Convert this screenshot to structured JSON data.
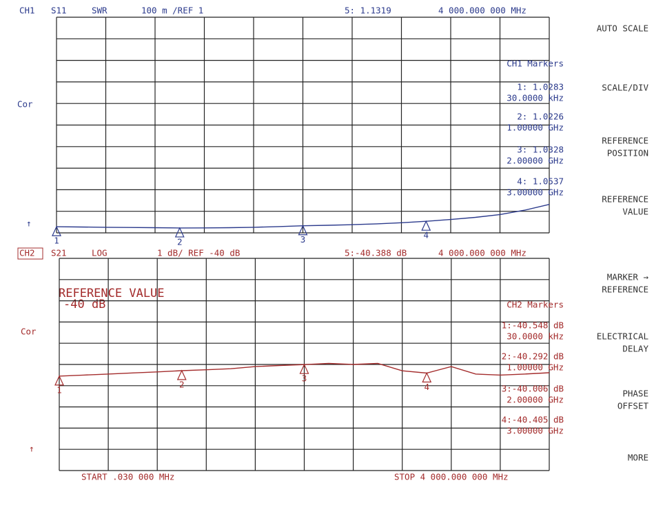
{
  "channels": [
    {
      "channel": "CH1",
      "param": "S11",
      "format": "SWR",
      "scale": "100 m /REF 1",
      "marker5": "5: 1.1319",
      "marker5_freq": "4 000.000 000 MHz",
      "cor": "Cor",
      "ref_arrow": "↑"
    },
    {
      "channel": "CH2",
      "param": "S21",
      "format": "LOG",
      "scale": "1 dB/ REF -40 dB",
      "marker5": "5:-40.388 dB",
      "marker5_freq": "4 000.000 000 MHz",
      "cor": "Cor",
      "ref_arrow": "↑"
    }
  ],
  "reference_note": {
    "line1": "REFERENCE VALUE",
    "line2": "-40 dB"
  },
  "footer": {
    "start": "START .030 000 MHz",
    "stop": "STOP 4 000.000 000 MHz"
  },
  "softkeys": [
    [
      "AUTO SCALE"
    ],
    [
      "SCALE/DIV"
    ],
    [
      "REFERENCE",
      "POSITION"
    ],
    [
      "REFERENCE",
      "VALUE"
    ],
    [
      "MARKER →",
      "REFERENCE"
    ],
    [
      "ELECTRICAL",
      "DELAY"
    ],
    [
      "PHASE",
      "OFFSET"
    ],
    [
      "MORE"
    ]
  ],
  "chart_data": [
    {
      "type": "line",
      "color": "#2b3a8c",
      "x": [
        0.03,
        200,
        400,
        600,
        800,
        1000,
        1200,
        1400,
        1600,
        1800,
        2000,
        2200,
        2400,
        2600,
        2800,
        3000,
        3200,
        3400,
        3600,
        3800,
        4000
      ],
      "values": [
        1.0283,
        1.027,
        1.026,
        1.025,
        1.024,
        1.0226,
        1.023,
        1.024,
        1.026,
        1.029,
        1.0328,
        1.035,
        1.038,
        1.042,
        1.047,
        1.0537,
        1.062,
        1.072,
        1.085,
        1.105,
        1.1319
      ],
      "xlim": [
        0.03,
        4000
      ],
      "ylim": [
        1,
        2
      ],
      "xticks": [
        0.03,
        400,
        800,
        1200,
        1600,
        2000,
        2400,
        2800,
        3200,
        3600,
        4000
      ],
      "yticks": [
        1,
        1.1,
        1.2,
        1.3,
        1.4,
        1.5,
        1.6,
        1.7,
        1.8,
        1.9,
        2
      ],
      "grid": true,
      "markers": {
        "title": "CH1 Markers",
        "labels": [
          "1",
          "2",
          "3",
          "4"
        ],
        "x": [
          0.03,
          1000,
          2000,
          3000
        ],
        "values": [
          1.0283,
          1.0226,
          1.0328,
          1.0537
        ],
        "value_labels": [
          "1: 1.0283",
          "2: 1.0226",
          "3: 1.0328",
          "4: 1.0537"
        ],
        "x_labels": [
          "30.0000 kHz",
          "1.00000 GHz",
          "2.00000 GHz",
          "3.00000 GHz"
        ]
      }
    },
    {
      "type": "line",
      "color": "#a32b2b",
      "x": [
        0.03,
        200,
        400,
        600,
        800,
        1000,
        1200,
        1400,
        1600,
        1800,
        2000,
        2200,
        2400,
        2600,
        2800,
        3000,
        3200,
        3400,
        3600,
        3800,
        4000
      ],
      "values": [
        -40.548,
        -40.5,
        -40.45,
        -40.4,
        -40.35,
        -40.292,
        -40.25,
        -40.2,
        -40.1,
        -40.05,
        -40.006,
        -39.95,
        -40.0,
        -39.95,
        -40.3,
        -40.405,
        -40.1,
        -40.45,
        -40.5,
        -40.45,
        -40.388
      ],
      "xlim": [
        0.03,
        4000
      ],
      "ylim": [
        -45,
        -35
      ],
      "xticks": [
        0.03,
        400,
        800,
        1200,
        1600,
        2000,
        2400,
        2800,
        3200,
        3600,
        4000
      ],
      "yticks": [
        -45,
        -44,
        -43,
        -42,
        -41,
        -40,
        -39,
        -38,
        -37,
        -36,
        -35
      ],
      "grid": true,
      "markers": {
        "title": "CH2 Markers",
        "labels": [
          "1",
          "2",
          "3",
          "4"
        ],
        "x": [
          0.03,
          1000,
          2000,
          3000
        ],
        "values": [
          -40.548,
          -40.292,
          -40.006,
          -40.405
        ],
        "value_labels": [
          "1:-40.548 dB",
          "2:-40.292 dB",
          "3:-40.006 dB",
          "4:-40.405 dB"
        ],
        "x_labels": [
          "30.0000 kHz",
          "1.00000 GHz",
          "2.00000 GHz",
          "3.00000 GHz"
        ]
      }
    }
  ]
}
